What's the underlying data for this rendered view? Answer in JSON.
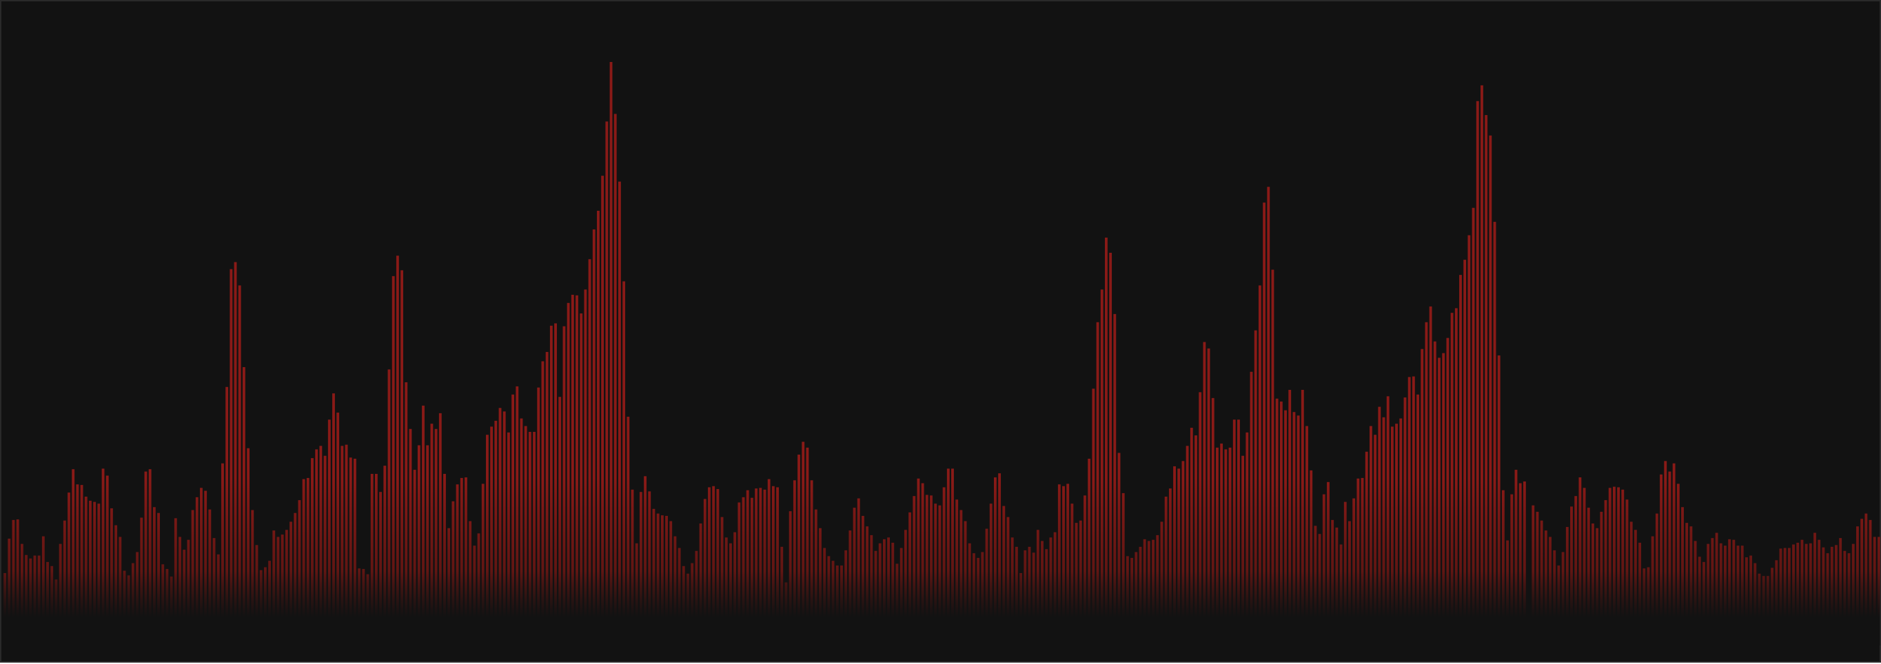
{
  "chart_data": {
    "type": "bar",
    "orientation": "vertical",
    "title": "",
    "xlabel": "",
    "ylabel": "",
    "axes_visible": false,
    "grid": false,
    "legend": "none",
    "ylim": [
      0,
      100
    ],
    "colors": {
      "background": "#121212",
      "frame": "#2a2a2a",
      "bar": "#8a1a17",
      "bar_fade": "#121212"
    },
    "values": [
      12.4,
      18.3,
      21.5,
      21.6,
      17.4,
      15.5,
      14.9,
      15.4,
      15.4,
      18.7,
      14.3,
      13.6,
      11.3,
      17.4,
      21.4,
      26.2,
      30.2,
      27.6,
      27.5,
      25.5,
      24.8,
      24.6,
      24.3,
      30.3,
      29.1,
      23.5,
      20.6,
      18.6,
      12.8,
      12.0,
      14.1,
      16.0,
      21.9,
      29.8,
      30.2,
      23.7,
      22.7,
      13.9,
      13.1,
      11.8,
      21.8,
      18.6,
      16.4,
      18.1,
      23.2,
      25.4,
      27.0,
      26.5,
      23.3,
      18.4,
      15.6,
      31.2,
      44.3,
      64.5,
      65.7,
      61.7,
      47.7,
      33.8,
      23.2,
      17.2,
      12.9,
      13.4,
      14.5,
      19.7,
      18.6,
      19.0,
      19.8,
      21.2,
      22.7,
      24.9,
      28.5,
      28.7,
      32.1,
      33.6,
      34.2,
      32.5,
      38.7,
      43.2,
      39.9,
      34.2,
      34.4,
      32.2,
      32.0,
      13.2,
      13.1,
      12.2,
      29.4,
      29.4,
      26.3,
      30.8,
      47.3,
      63.3,
      66.8,
      64.3,
      45.1,
      37.1,
      30.1,
      34.3,
      41.1,
      34.3,
      38.0,
      37.1,
      39.8,
      29.4,
      20.1,
      24.7,
      27.6,
      28.7,
      28.8,
      21.3,
      17.1,
      19.2,
      27.7,
      36.1,
      37.5,
      38.5,
      40.7,
      40.1,
      36.5,
      43.0,
      44.4,
      38.9,
      37.6,
      36.6,
      36.6,
      44.2,
      48.7,
      50.3,
      54.8,
      55.2,
      42.6,
      54.7,
      58.7,
      60.1,
      60.0,
      56.9,
      61.0,
      66.2,
      71.3,
      74.5,
      80.5,
      89.8,
      100.0,
      91.1,
      79.5,
      62.4,
      39.2,
      26.7,
      17.5,
      26.3,
      29.0,
      26.4,
      23.4,
      22.6,
      22.3,
      22.2,
      21.3,
      18.7,
      16.7,
      13.6,
      12.3,
      14.1,
      16.2,
      20.9,
      25.1,
      27.1,
      27.3,
      26.8,
      22.0,
      18.5,
      17.5,
      19.4,
      24.5,
      25.4,
      26.6,
      25.3,
      26.9,
      27.0,
      26.7,
      28.5,
      27.3,
      27.1,
      16.9,
      10.8,
      23.0,
      28.3,
      32.7,
      34.9,
      33.9,
      28.3,
      23.3,
      20.1,
      16.7,
      15.3,
      14.5,
      13.7,
      13.7,
      16.3,
      19.7,
      23.6,
      25.2,
      22.2,
      20.4,
      18.9,
      16.2,
      17.5,
      18.2,
      18.5,
      17.6,
      14.0,
      16.7,
      19.8,
      22.8,
      25.6,
      28.6,
      27.8,
      25.8,
      25.7,
      24.3,
      24.0,
      27.1,
      30.3,
      30.3,
      25.0,
      23.2,
      21.3,
      17.5,
      15.8,
      15.0,
      16.0,
      20.0,
      24.3,
      28.8,
      29.5,
      23.9,
      22.0,
      18.5,
      16.9,
      12.4,
      16.3,
      16.9,
      15.9,
      19.8,
      17.9,
      16.5,
      18.5,
      19.4,
      27.6,
      27.3,
      27.7,
      24.3,
      21.0,
      21.4,
      25.7,
      32.0,
      44.0,
      55.4,
      61.0,
      69.9,
      67.3,
      56.8,
      33.0,
      26.1,
      15.3,
      15.0,
      16.0,
      16.9,
      18.2,
      17.9,
      18.1,
      18.9,
      21.2,
      25.5,
      26.9,
      30.7,
      30.3,
      31.6,
      34.2,
      37.3,
      36.0,
      43.4,
      52.0,
      50.9,
      42.4,
      33.9,
      34.6,
      33.6,
      33.9,
      38.7,
      38.7,
      32.5,
      36.5,
      46.9,
      54.0,
      61.7,
      75.9,
      78.6,
      64.4,
      42.3,
      41.8,
      40.3,
      43.8,
      40.0,
      39.4,
      43.8,
      37.6,
      30.0,
      20.5,
      19.1,
      25.9,
      28.0,
      21.5,
      20.2,
      17.3,
      24.6,
      21.3,
      25.2,
      28.6,
      28.7,
      33.2,
      37.6,
      36.1,
      40.9,
      39.1,
      42.7,
      37.5,
      38.0,
      38.9,
      42.5,
      46.0,
      46.1,
      43.0,
      50.8,
      55.4,
      58.1,
      52.1,
      49.3,
      50.1,
      52.7,
      57.0,
      57.8,
      63.5,
      66.1,
      70.3,
      75.0,
      93.3,
      96.0,
      90.9,
      87.4,
      72.6,
      49.7,
      26.6,
      18.0,
      25.9,
      30.1,
      27.8,
      28.1,
      4.4,
      24.0,
      22.9,
      21.4,
      19.7,
      18.6,
      16.3,
      13.7,
      16.0,
      20.3,
      23.8,
      25.6,
      28.8,
      27.0,
      23.6,
      20.9,
      20.1,
      22.9,
      24.9,
      27.0,
      27.2,
      27.1,
      26.7,
      25.0,
      21.2,
      19.8,
      17.6,
      13.2,
      13.4,
      18.7,
      22.6,
      29.3,
      31.6,
      29.8,
      31.2,
      27.7,
      23.7,
      21.0,
      20.4,
      17.9,
      15.2,
      14.3,
      17.4,
      18.4,
      19.3,
      17.5,
      17.1,
      18.2,
      18.1,
      17.1,
      17.1,
      15.1,
      15.4,
      14.1,
      12.3,
      11.9,
      11.9,
      13.3,
      14.6,
      16.6,
      16.7,
      16.7,
      17.3,
      17.6,
      18.1,
      17.4,
      17.5,
      19.3,
      18.1,
      16.8,
      15.8,
      16.9,
      17.2,
      18.4,
      16.2,
      15.8,
      17.4,
      20.4,
      21.7,
      22.6,
      21.5,
      18.6,
      18.6
    ]
  }
}
